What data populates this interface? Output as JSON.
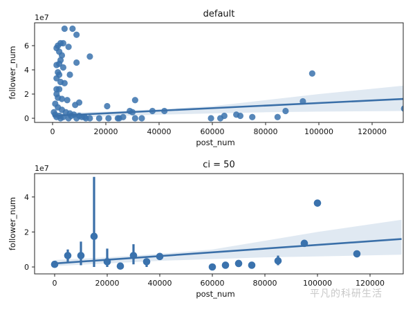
{
  "chart_data": [
    {
      "type": "scatter",
      "title": "default",
      "xlabel": "post_num",
      "ylabel": "follower_num",
      "y_offset_label": "1e7",
      "xlim": [
        -7000,
        132000
      ],
      "ylim": [
        -0.3,
        7.8
      ],
      "xticks": [
        0,
        20000,
        40000,
        60000,
        80000,
        100000,
        120000
      ],
      "xtick_labels": [
        "0",
        "20000",
        "40000",
        "60000",
        "80000",
        "100000",
        "120000"
      ],
      "yticks": [
        0,
        2,
        4,
        6
      ],
      "ytick_labels": [
        "0",
        "2",
        "4",
        "6"
      ],
      "regression": {
        "x": [
          0,
          132000
        ],
        "y": [
          0.2,
          1.6
        ]
      },
      "ci_band": {
        "x": [
          0,
          20000,
          40000,
          60000,
          80000,
          100000,
          132000
        ],
        "lower": [
          0.0,
          0.15,
          0.3,
          0.4,
          0.5,
          0.55,
          0.6
        ],
        "upper": [
          0.45,
          0.55,
          0.75,
          1.0,
          1.5,
          2.0,
          2.7
        ]
      },
      "points": [
        [
          4500,
          7.4
        ],
        [
          7500,
          7.4
        ],
        [
          9000,
          6.9
        ],
        [
          1500,
          5.8
        ],
        [
          2000,
          6.0
        ],
        [
          3000,
          6.2
        ],
        [
          4000,
          6.2
        ],
        [
          6000,
          5.9
        ],
        [
          14000,
          5.1
        ],
        [
          2500,
          5.5
        ],
        [
          3500,
          5.2
        ],
        [
          3000,
          4.8
        ],
        [
          9000,
          4.6
        ],
        [
          1500,
          4.4
        ],
        [
          2500,
          4.5
        ],
        [
          4000,
          4.2
        ],
        [
          2000,
          3.8
        ],
        [
          2500,
          3.6
        ],
        [
          1500,
          3.3
        ],
        [
          6500,
          3.6
        ],
        [
          3000,
          3.0
        ],
        [
          4500,
          2.9
        ],
        [
          1500,
          2.4
        ],
        [
          2500,
          2.4
        ],
        [
          1500,
          2.0
        ],
        [
          2000,
          1.7
        ],
        [
          3500,
          1.6
        ],
        [
          5500,
          1.5
        ],
        [
          10000,
          1.3
        ],
        [
          8500,
          1.1
        ],
        [
          20500,
          1.0
        ],
        [
          31000,
          1.5
        ],
        [
          1000,
          1.2
        ],
        [
          2000,
          0.9
        ],
        [
          3500,
          0.7
        ],
        [
          5000,
          0.5
        ],
        [
          6500,
          0.4
        ],
        [
          8000,
          0.3
        ],
        [
          10000,
          0.2
        ],
        [
          12000,
          0.1
        ],
        [
          500,
          0.5
        ],
        [
          1000,
          0.3
        ],
        [
          1500,
          0.1
        ],
        [
          2500,
          0.2
        ],
        [
          3000,
          0.0
        ],
        [
          4000,
          0.1
        ],
        [
          6000,
          0.0
        ],
        [
          7000,
          0.2
        ],
        [
          9000,
          0.0
        ],
        [
          11000,
          0.1
        ],
        [
          12500,
          0.0
        ],
        [
          14000,
          0.0
        ],
        [
          17500,
          0.0
        ],
        [
          21000,
          0.0
        ],
        [
          24500,
          0.0
        ],
        [
          25000,
          0.0
        ],
        [
          26500,
          0.1
        ],
        [
          29000,
          0.6
        ],
        [
          30000,
          0.5
        ],
        [
          31000,
          0.0
        ],
        [
          33500,
          0.0
        ],
        [
          37500,
          0.6
        ],
        [
          42000,
          0.6
        ],
        [
          59500,
          0.0
        ],
        [
          63000,
          0.0
        ],
        [
          64500,
          0.2
        ],
        [
          69000,
          0.3
        ],
        [
          70500,
          0.2
        ],
        [
          75000,
          0.1
        ],
        [
          84500,
          0.1
        ],
        [
          87500,
          0.6
        ],
        [
          94000,
          1.4
        ],
        [
          97500,
          3.7
        ],
        [
          132000,
          0.8
        ]
      ]
    },
    {
      "type": "scatter",
      "title": "ci = 50",
      "xlabel": "post_num",
      "ylabel": "follower_num",
      "y_offset_label": "1e7",
      "xlim": [
        -7000,
        132000
      ],
      "ylim": [
        -0.3,
        5.4
      ],
      "xticks": [
        0,
        20000,
        40000,
        60000,
        80000,
        100000,
        120000
      ],
      "xtick_labels": [
        "0",
        "20000",
        "40000",
        "60000",
        "80000",
        "100000",
        "120000"
      ],
      "yticks": [
        0,
        2,
        4
      ],
      "ytick_labels": [
        "0",
        "2",
        "4"
      ],
      "regression": {
        "x": [
          0,
          132000
        ],
        "y": [
          0.2,
          1.6
        ]
      },
      "ci_band": {
        "x": [
          0,
          20000,
          40000,
          60000,
          80000,
          100000,
          132000
        ],
        "lower": [
          0.05,
          0.2,
          0.35,
          0.45,
          0.55,
          0.6,
          0.7
        ],
        "upper": [
          0.4,
          0.55,
          0.75,
          1.0,
          1.5,
          2.0,
          2.7
        ]
      },
      "points": [
        {
          "x": 0,
          "y": 0.15,
          "err": [
            0.15,
            0.15
          ]
        },
        {
          "x": 5000,
          "y": 0.65,
          "err": [
            0.3,
            1.0
          ]
        },
        {
          "x": 10000,
          "y": 0.65,
          "err": [
            0.1,
            1.45
          ]
        },
        {
          "x": 15000,
          "y": 1.75,
          "err": [
            0.0,
            5.15
          ]
        },
        {
          "x": 20000,
          "y": 0.3,
          "err": [
            0.0,
            1.05
          ]
        },
        {
          "x": 25000,
          "y": 0.05,
          "err": [
            0.05,
            0.05
          ]
        },
        {
          "x": 30000,
          "y": 0.65,
          "err": [
            0.15,
            1.3
          ]
        },
        {
          "x": 35000,
          "y": 0.3,
          "err": [
            0.0,
            0.45
          ]
        },
        {
          "x": 40000,
          "y": 0.6,
          "err": [
            0.6,
            0.6
          ]
        },
        {
          "x": 60000,
          "y": 0.0,
          "err": [
            0.0,
            0.0
          ]
        },
        {
          "x": 65000,
          "y": 0.1,
          "err": [
            0.1,
            0.1
          ]
        },
        {
          "x": 70000,
          "y": 0.2,
          "err": [
            0.2,
            0.2
          ]
        },
        {
          "x": 75000,
          "y": 0.1,
          "err": [
            0.1,
            0.1
          ]
        },
        {
          "x": 85000,
          "y": 0.35,
          "err": [
            0.1,
            0.65
          ]
        },
        {
          "x": 95000,
          "y": 1.35,
          "err": [
            1.35,
            1.35
          ]
        },
        {
          "x": 100000,
          "y": 3.65,
          "err": [
            3.65,
            3.65
          ]
        },
        {
          "x": 115000,
          "y": 0.75,
          "err": [
            0.75,
            0.75
          ]
        }
      ]
    }
  ],
  "watermark": "平凡的科研生活",
  "colors": {
    "marker": "#3a72ad",
    "line": "#3a6fa8",
    "band": "#dbe5f0"
  }
}
